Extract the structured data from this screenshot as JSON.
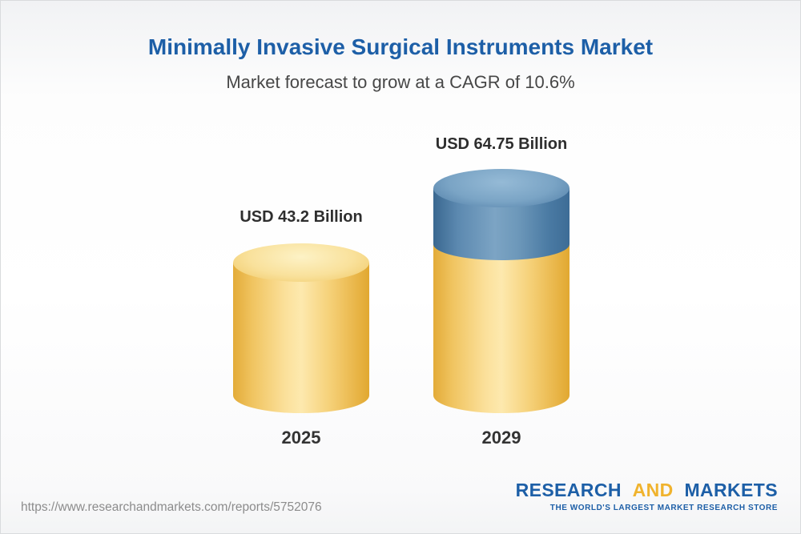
{
  "header": {
    "title": "Minimally Invasive Surgical Instruments Market",
    "subtitle": "Market forecast to grow at a CAGR of 10.6%"
  },
  "chart_data": {
    "type": "bar",
    "title": "Minimally Invasive Surgical Instruments Market",
    "subtitle": "Market forecast to grow at a CAGR of 10.6%",
    "unit": "USD Billion",
    "cagr_percent": 10.6,
    "categories": [
      "2025",
      "2029"
    ],
    "values": [
      43.2,
      64.75
    ],
    "bars": [
      {
        "year": "2025",
        "value": 43.2,
        "label": "USD 43.2 Billion",
        "segment_colors": [
          "#f7d57e"
        ]
      },
      {
        "year": "2029",
        "value": 64.75,
        "label": "USD 64.75 Billion",
        "segment_colors": [
          "#f7d57e",
          "#5e8cb4"
        ]
      }
    ],
    "ylim": [
      0,
      70
    ],
    "legend": "none",
    "grid": false
  },
  "footer": {
    "url": "https://www.researchandmarkets.com/reports/5752076",
    "logo": {
      "research": "RESEARCH",
      "and": "AND",
      "markets": "MARKETS",
      "tagline": "THE WORLD'S LARGEST MARKET RESEARCH STORE"
    }
  },
  "colors": {
    "title_blue": "#1d5fa7",
    "accent_yellow": "#f0b32e",
    "bar_yellow": "#f7d57e",
    "bar_blue": "#5e8cb4",
    "text_dark": "#333333",
    "url_gray": "#8c8c8c"
  }
}
